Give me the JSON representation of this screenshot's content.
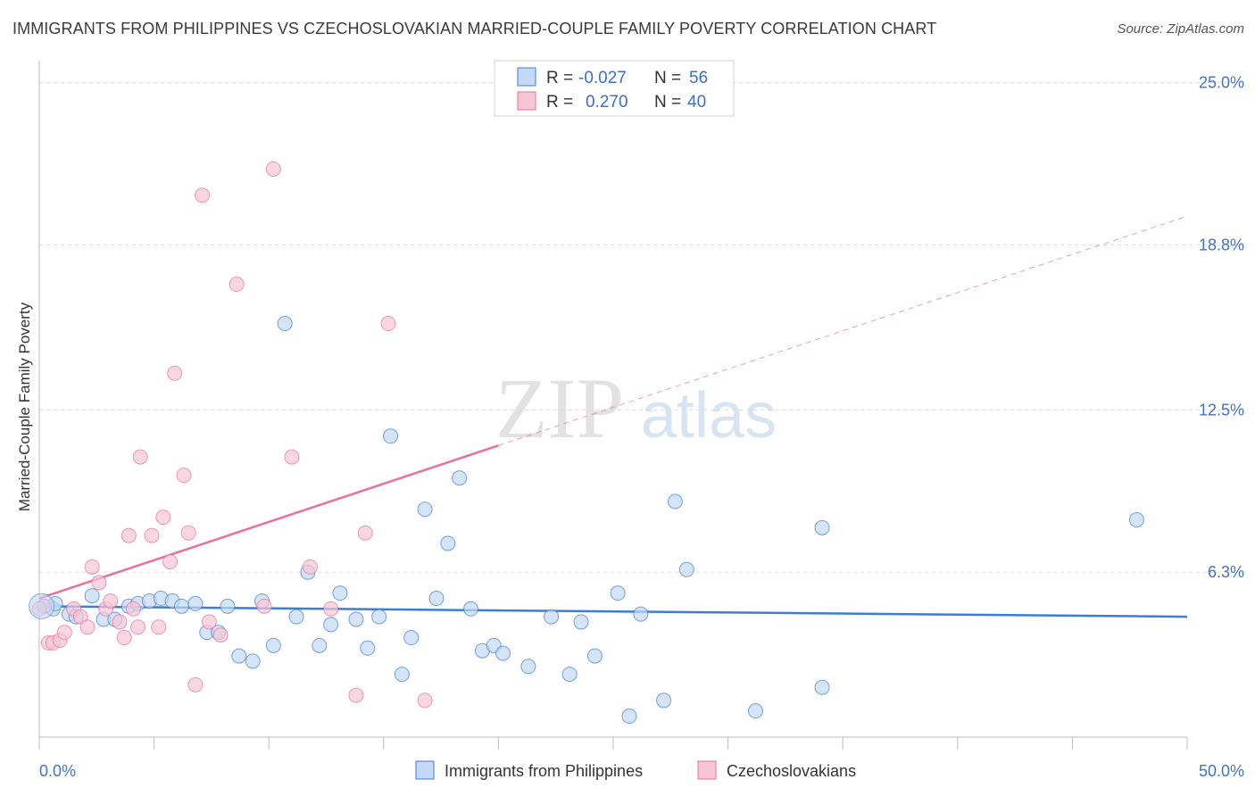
{
  "header": {
    "title": "IMMIGRANTS FROM PHILIPPINES VS CZECHOSLOVAKIAN MARRIED-COUPLE FAMILY POVERTY CORRELATION CHART",
    "source": "Source: ZipAtlas.com"
  },
  "watermark": {
    "zip": "ZIP",
    "atlas": "atlas"
  },
  "colors": {
    "blue": "#3b7dd8",
    "blue_fill": "#c5d9f4",
    "pink": "#e8719a",
    "pink_fill": "#f7c6d6",
    "axis_label": "#4472c4",
    "grid": "#dcdcdc"
  },
  "legend": {
    "rows": [
      {
        "r_label": "R = ",
        "r_value": "-0.027",
        "n_label": "N = ",
        "n_value": "56",
        "color": "blue"
      },
      {
        "r_label": "R = ",
        "r_value": "0.270",
        "n_label": "N = ",
        "n_value": "40",
        "color": "pink"
      }
    ]
  },
  "bottom_legend": [
    "Immigrants from Philippines",
    "Czechoslovakians"
  ],
  "chart_data": {
    "type": "scatter",
    "title": "IMMIGRANTS FROM PHILIPPINES VS CZECHOSLOVAKIAN MARRIED-COUPLE FAMILY POVERTY CORRELATION CHART",
    "xlabel": "",
    "ylabel": "Married-Couple Family Poverty",
    "xlim": [
      0,
      50
    ],
    "ylim": [
      0,
      25.5
    ],
    "x_tick_labels": [
      "0.0%",
      "50.0%"
    ],
    "y_ticks": [
      6.3,
      12.5,
      18.8,
      25.0
    ],
    "y_tick_labels": [
      "6.3%",
      "12.5%",
      "18.8%",
      "25.0%"
    ],
    "series": [
      {
        "name": "Immigrants from Philippines",
        "color": "blue",
        "R": -0.027,
        "N": 56,
        "trend": {
          "x": [
            0,
            50
          ],
          "y": [
            5.0,
            4.6
          ],
          "dashed_from": null
        },
        "points": [
          [
            0.2,
            5.0
          ],
          [
            0.6,
            4.9
          ],
          [
            0.7,
            5.1
          ],
          [
            1.3,
            4.7
          ],
          [
            1.6,
            4.6
          ],
          [
            2.3,
            5.4
          ],
          [
            2.8,
            4.5
          ],
          [
            3.3,
            4.5
          ],
          [
            3.9,
            5.0
          ],
          [
            4.3,
            5.1
          ],
          [
            4.8,
            5.2
          ],
          [
            5.3,
            5.3
          ],
          [
            5.8,
            5.2
          ],
          [
            6.2,
            5.0
          ],
          [
            6.8,
            5.1
          ],
          [
            7.3,
            4.0
          ],
          [
            7.8,
            4.0
          ],
          [
            8.2,
            5.0
          ],
          [
            8.7,
            3.1
          ],
          [
            9.3,
            2.9
          ],
          [
            9.7,
            5.2
          ],
          [
            10.2,
            3.5
          ],
          [
            10.7,
            15.8
          ],
          [
            11.2,
            4.6
          ],
          [
            11.7,
            6.3
          ],
          [
            12.2,
            3.5
          ],
          [
            12.7,
            4.3
          ],
          [
            13.1,
            5.5
          ],
          [
            13.8,
            4.5
          ],
          [
            14.3,
            3.4
          ],
          [
            14.8,
            4.6
          ],
          [
            15.3,
            11.5
          ],
          [
            15.8,
            2.4
          ],
          [
            16.2,
            3.8
          ],
          [
            16.8,
            8.7
          ],
          [
            17.3,
            5.3
          ],
          [
            17.8,
            7.4
          ],
          [
            18.3,
            9.9
          ],
          [
            18.8,
            4.9
          ],
          [
            19.3,
            3.3
          ],
          [
            19.8,
            3.5
          ],
          [
            20.2,
            3.2
          ],
          [
            21.3,
            2.7
          ],
          [
            22.3,
            4.6
          ],
          [
            23.1,
            2.4
          ],
          [
            23.6,
            4.4
          ],
          [
            24.2,
            3.1
          ],
          [
            25.2,
            5.5
          ],
          [
            25.7,
            0.8
          ],
          [
            26.2,
            4.7
          ],
          [
            27.2,
            1.4
          ],
          [
            27.7,
            9.0
          ],
          [
            28.2,
            6.4
          ],
          [
            31.2,
            1.0
          ],
          [
            34.1,
            8.0
          ],
          [
            34.1,
            1.9
          ],
          [
            47.8,
            8.3
          ]
        ]
      },
      {
        "name": "Czechoslovakians",
        "color": "pink",
        "R": 0.27,
        "N": 40,
        "trend": {
          "x": [
            0,
            50
          ],
          "y": [
            5.3,
            19.9
          ],
          "dashed_from": 20
        },
        "points": [
          [
            0.2,
            5.0
          ],
          [
            0.4,
            3.6
          ],
          [
            0.6,
            3.6
          ],
          [
            0.9,
            3.7
          ],
          [
            1.1,
            4.0
          ],
          [
            1.5,
            4.9
          ],
          [
            1.8,
            4.6
          ],
          [
            2.1,
            4.2
          ],
          [
            2.3,
            6.5
          ],
          [
            2.6,
            5.9
          ],
          [
            2.9,
            4.9
          ],
          [
            3.1,
            5.2
          ],
          [
            3.5,
            4.4
          ],
          [
            3.7,
            3.8
          ],
          [
            3.9,
            7.7
          ],
          [
            4.1,
            4.9
          ],
          [
            4.3,
            4.2
          ],
          [
            4.4,
            10.7
          ],
          [
            4.9,
            7.7
          ],
          [
            5.2,
            4.2
          ],
          [
            5.4,
            8.4
          ],
          [
            5.7,
            6.7
          ],
          [
            5.9,
            13.9
          ],
          [
            6.3,
            10.0
          ],
          [
            6.5,
            7.8
          ],
          [
            6.8,
            2.0
          ],
          [
            7.1,
            20.7
          ],
          [
            7.4,
            4.4
          ],
          [
            7.9,
            3.9
          ],
          [
            8.6,
            17.3
          ],
          [
            9.8,
            5.0
          ],
          [
            10.2,
            21.7
          ],
          [
            11.0,
            10.7
          ],
          [
            11.8,
            6.5
          ],
          [
            12.7,
            4.9
          ],
          [
            13.8,
            1.6
          ],
          [
            14.2,
            7.8
          ],
          [
            15.2,
            15.8
          ],
          [
            16.8,
            1.4
          ],
          [
            0.0,
            4.9
          ]
        ]
      }
    ]
  }
}
